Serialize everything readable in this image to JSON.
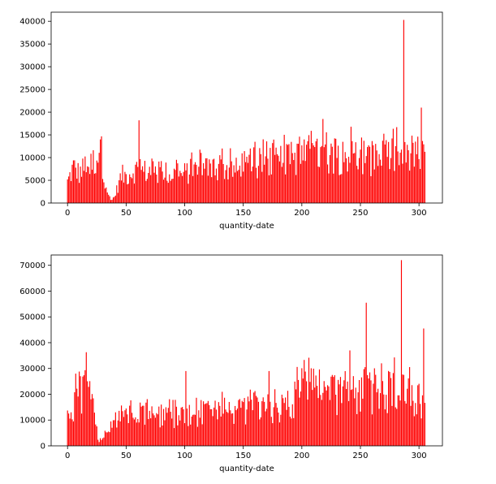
{
  "chart_data": [
    {
      "type": "bar",
      "xlabel": "quantity-date",
      "ylabel": "",
      "color": "#ff0000",
      "xlim": [
        -14,
        320
      ],
      "ylim": [
        0,
        42000
      ],
      "x_ticks": [
        0,
        50,
        100,
        150,
        200,
        250,
        300
      ],
      "y_ticks": [
        0,
        5000,
        10000,
        15000,
        20000,
        25000,
        30000,
        35000,
        40000
      ],
      "profile": [
        [
          0,
          5000
        ],
        [
          5,
          8500
        ],
        [
          10,
          7000
        ],
        [
          15,
          8500
        ],
        [
          20,
          9000
        ],
        [
          25,
          11000
        ],
        [
          28,
          14000
        ],
        [
          31,
          7000
        ],
        [
          35,
          2000
        ],
        [
          37,
          500
        ],
        [
          40,
          1500
        ],
        [
          43,
          4000
        ],
        [
          46,
          6500
        ],
        [
          50,
          6500
        ],
        [
          55,
          7500
        ],
        [
          60,
          8000
        ],
        [
          65,
          7500
        ],
        [
          70,
          7500
        ],
        [
          75,
          7000
        ],
        [
          80,
          6500
        ],
        [
          85,
          6000
        ],
        [
          90,
          7000
        ],
        [
          95,
          6500
        ],
        [
          100,
          7000
        ],
        [
          110,
          8000
        ],
        [
          120,
          8000
        ],
        [
          130,
          8500
        ],
        [
          140,
          8000
        ],
        [
          150,
          7500
        ],
        [
          160,
          9000
        ],
        [
          170,
          10000
        ],
        [
          180,
          10000
        ],
        [
          190,
          10500
        ],
        [
          200,
          11000
        ],
        [
          210,
          11000
        ],
        [
          220,
          11500
        ],
        [
          230,
          11000
        ],
        [
          240,
          11500
        ],
        [
          250,
          10000
        ],
        [
          260,
          10500
        ],
        [
          270,
          11000
        ],
        [
          280,
          11000
        ],
        [
          290,
          10500
        ],
        [
          300,
          11000
        ],
        [
          305,
          9000
        ]
      ],
      "spikes": [
        [
          28,
          14000
        ],
        [
          61,
          18200
        ],
        [
          132,
          12000
        ],
        [
          218,
          18500
        ],
        [
          242,
          16800
        ],
        [
          281,
          16700
        ],
        [
          287,
          40300
        ],
        [
          302,
          21000
        ]
      ]
    },
    {
      "type": "bar",
      "xlabel": "quantity-date",
      "ylabel": "",
      "color": "#ff0000",
      "xlim": [
        -14,
        320
      ],
      "ylim": [
        0,
        74000
      ],
      "x_ticks": [
        0,
        50,
        100,
        150,
        200,
        250,
        300
      ],
      "y_ticks": [
        0,
        10000,
        20000,
        30000,
        40000,
        50000,
        60000,
        70000
      ],
      "profile": [
        [
          0,
          11000
        ],
        [
          5,
          16000
        ],
        [
          10,
          20000
        ],
        [
          15,
          24000
        ],
        [
          18,
          24000
        ],
        [
          21,
          16000
        ],
        [
          24,
          8000
        ],
        [
          27,
          2000
        ],
        [
          30,
          3500
        ],
        [
          35,
          8000
        ],
        [
          40,
          11000
        ],
        [
          45,
          12000
        ],
        [
          50,
          12500
        ],
        [
          60,
          13000
        ],
        [
          70,
          13000
        ],
        [
          80,
          13000
        ],
        [
          90,
          12000
        ],
        [
          100,
          12000
        ],
        [
          110,
          13000
        ],
        [
          120,
          13500
        ],
        [
          130,
          14000
        ],
        [
          140,
          14500
        ],
        [
          150,
          14500
        ],
        [
          160,
          15000
        ],
        [
          170,
          15000
        ],
        [
          180,
          15500
        ],
        [
          190,
          17000
        ],
        [
          195,
          20000
        ],
        [
          200,
          22000
        ],
        [
          205,
          24000
        ],
        [
          210,
          24000
        ],
        [
          220,
          22000
        ],
        [
          230,
          21000
        ],
        [
          240,
          23000
        ],
        [
          250,
          22000
        ],
        [
          260,
          22000
        ],
        [
          270,
          22000
        ],
        [
          280,
          23000
        ],
        [
          290,
          21000
        ],
        [
          300,
          20000
        ],
        [
          305,
          14000
        ]
      ],
      "spikes": [
        [
          7,
          28000
        ],
        [
          11,
          27000
        ],
        [
          16,
          36300
        ],
        [
          101,
          29000
        ],
        [
          172,
          29000
        ],
        [
          241,
          37000
        ],
        [
          255,
          55500
        ],
        [
          268,
          32000
        ],
        [
          285,
          72000
        ],
        [
          304,
          45500
        ]
      ]
    }
  ]
}
